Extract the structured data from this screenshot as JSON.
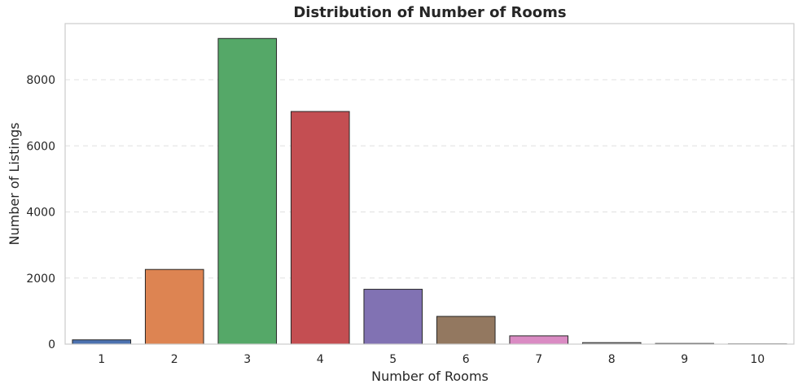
{
  "chart_data": {
    "type": "bar",
    "title": "Distribution of Number of Rooms",
    "xlabel": "Number of Rooms",
    "ylabel": "Number of Listings",
    "categories": [
      "1",
      "2",
      "3",
      "4",
      "5",
      "6",
      "7",
      "8",
      "9",
      "10"
    ],
    "values": [
      130,
      2260,
      9250,
      7040,
      1660,
      840,
      250,
      45,
      20,
      8
    ],
    "colors": [
      "#4c72b0",
      "#dd8452",
      "#55a868",
      "#c44e52",
      "#8172b3",
      "#937860",
      "#da8bc3",
      "#8c8c8c",
      "#ccb974",
      "#64b5cd"
    ],
    "ylim": [
      0,
      9700
    ],
    "yticks": [
      0,
      2000,
      4000,
      6000,
      8000
    ],
    "ytick_labels": [
      "0",
      "2000",
      "4000",
      "6000",
      "8000"
    ],
    "grid": "y-dashed",
    "legend": "none"
  }
}
